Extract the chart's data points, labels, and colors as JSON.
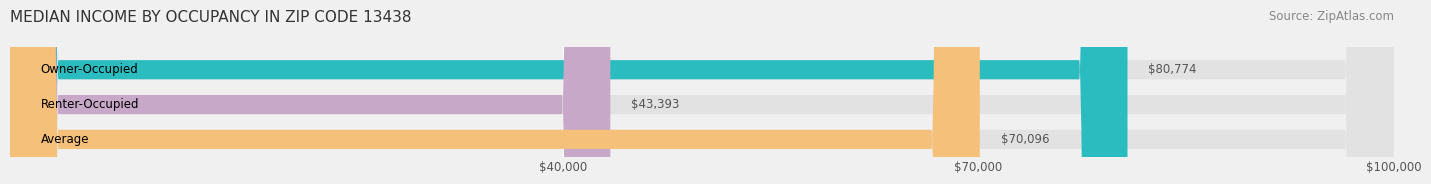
{
  "title": "MEDIAN INCOME BY OCCUPANCY IN ZIP CODE 13438",
  "source": "Source: ZipAtlas.com",
  "categories": [
    "Owner-Occupied",
    "Renter-Occupied",
    "Average"
  ],
  "values": [
    80774,
    43393,
    70096
  ],
  "bar_colors": [
    "#2bbcbf",
    "#c8a8c8",
    "#f5c07a"
  ],
  "bar_labels": [
    "$80,774",
    "$43,393",
    "$70,096"
  ],
  "xlim": [
    0,
    100000
  ],
  "xticks": [
    40000,
    70000,
    100000
  ],
  "xtick_labels": [
    "$40,000",
    "$70,000",
    "$100,000"
  ],
  "background_color": "#f0f0f0",
  "bar_bg_color": "#e2e2e2",
  "title_fontsize": 11,
  "label_fontsize": 8.5,
  "source_fontsize": 8.5
}
